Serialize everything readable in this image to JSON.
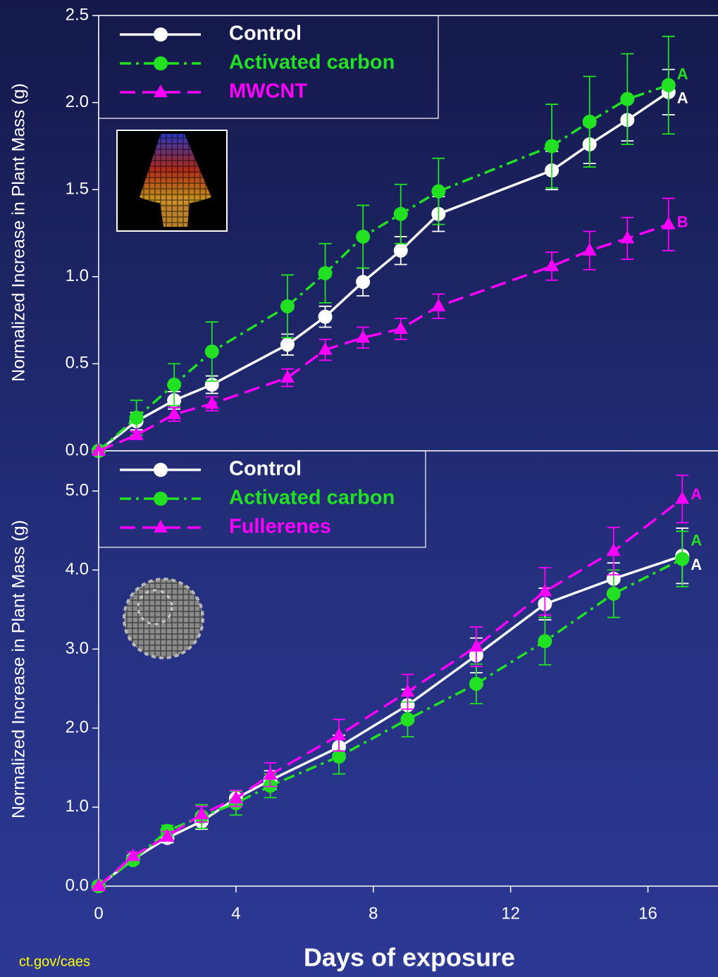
{
  "chart_data": [
    {
      "type": "line",
      "ylabel": "Normalized Increase in Plant Mass (g)",
      "xlim": [
        0,
        18
      ],
      "ylim": [
        0,
        2.5
      ],
      "yticks": [
        {
          "value": 0,
          "label": "0.0"
        },
        {
          "value": 0.5,
          "label": "0.5"
        },
        {
          "value": 1,
          "label": "1.0"
        },
        {
          "value": 1.5,
          "label": "1.5"
        },
        {
          "value": 2,
          "label": "2.0"
        },
        {
          "value": 2.5,
          "label": "2.5"
        }
      ],
      "x": [
        0,
        1.1,
        2.2,
        3.3,
        5.5,
        6.6,
        7.7,
        8.8,
        9.9,
        13.2,
        14.3,
        15.4,
        16.6
      ],
      "series": [
        {
          "name": "Control",
          "color": "#ffffff",
          "marker": "circle",
          "line_style": "solid",
          "group_label": "A",
          "values": [
            0,
            0.17,
            0.29,
            0.38,
            0.61,
            0.77,
            0.97,
            1.15,
            1.36,
            1.61,
            1.76,
            1.9,
            2.06
          ],
          "errors": [
            0,
            0.05,
            0.05,
            0.05,
            0.06,
            0.06,
            0.08,
            0.08,
            0.1,
            0.11,
            0.11,
            0.12,
            0.13
          ]
        },
        {
          "name": "Activated carbon",
          "color": "#22e022",
          "marker": "circle",
          "line_style": "dash-dot",
          "group_label": "A",
          "values": [
            0,
            0.19,
            0.38,
            0.57,
            0.83,
            1.02,
            1.23,
            1.36,
            1.49,
            1.75,
            1.89,
            2.02,
            2.1
          ],
          "errors": [
            0,
            0.1,
            0.12,
            0.17,
            0.18,
            0.17,
            0.18,
            0.17,
            0.19,
            0.24,
            0.26,
            0.26,
            0.28
          ]
        },
        {
          "name": "MWCNT",
          "color": "#ff00ff",
          "marker": "triangle",
          "line_style": "dashed",
          "group_label": "B",
          "values": [
            0,
            0.09,
            0.21,
            0.27,
            0.42,
            0.58,
            0.65,
            0.7,
            0.83,
            1.06,
            1.15,
            1.22,
            1.3
          ],
          "errors": [
            0,
            0.02,
            0.04,
            0.04,
            0.05,
            0.06,
            0.06,
            0.06,
            0.07,
            0.08,
            0.11,
            0.12,
            0.15
          ]
        }
      ]
    },
    {
      "type": "line",
      "ylabel": "Normalized Increase in Plant Mass (g)",
      "xlabel": "Days of exposure",
      "xlim": [
        0,
        18
      ],
      "ylim": [
        0,
        5.5
      ],
      "xticks": [
        0,
        4,
        8,
        12,
        16
      ],
      "yticks": [
        {
          "value": 0,
          "label": "0.0"
        },
        {
          "value": 1,
          "label": "1.0"
        },
        {
          "value": 2,
          "label": "2.0"
        },
        {
          "value": 3,
          "label": "3.0"
        },
        {
          "value": 4,
          "label": "4.0"
        },
        {
          "value": 5,
          "label": "5.0"
        }
      ],
      "x": [
        0,
        1,
        2,
        3,
        4,
        5,
        7,
        9,
        11,
        13,
        15,
        17
      ],
      "series": [
        {
          "name": "Control",
          "color": "#ffffff",
          "marker": "circle",
          "line_style": "solid",
          "group_label": "A",
          "values": [
            0,
            0.34,
            0.61,
            0.82,
            1.11,
            1.34,
            1.76,
            2.29,
            2.92,
            3.57,
            3.89,
            4.18
          ],
          "errors": [
            0,
            0.05,
            0.06,
            0.1,
            0.1,
            0.12,
            0.15,
            0.2,
            0.22,
            0.2,
            0.2,
            0.35
          ]
        },
        {
          "name": "Activated carbon",
          "color": "#22e022",
          "marker": "circle",
          "line_style": "dash-dot",
          "group_label": "A",
          "values": [
            0,
            0.33,
            0.7,
            0.88,
            1.05,
            1.27,
            1.64,
            2.11,
            2.56,
            3.1,
            3.7,
            4.14
          ],
          "errors": [
            0,
            0.05,
            0.07,
            0.15,
            0.15,
            0.15,
            0.22,
            0.22,
            0.25,
            0.3,
            0.3,
            0.35
          ]
        },
        {
          "name": "Fullerenes",
          "color": "#ff00ff",
          "marker": "triangle",
          "line_style": "dashed",
          "group_label": "A",
          "values": [
            0,
            0.38,
            0.63,
            0.91,
            1.11,
            1.41,
            1.91,
            2.46,
            3.03,
            3.73,
            4.24,
            4.9
          ],
          "errors": [
            0,
            0.05,
            0.06,
            0.1,
            0.1,
            0.15,
            0.2,
            0.22,
            0.25,
            0.3,
            0.3,
            0.3
          ]
        }
      ]
    }
  ],
  "footer": "ct.gov/caes"
}
